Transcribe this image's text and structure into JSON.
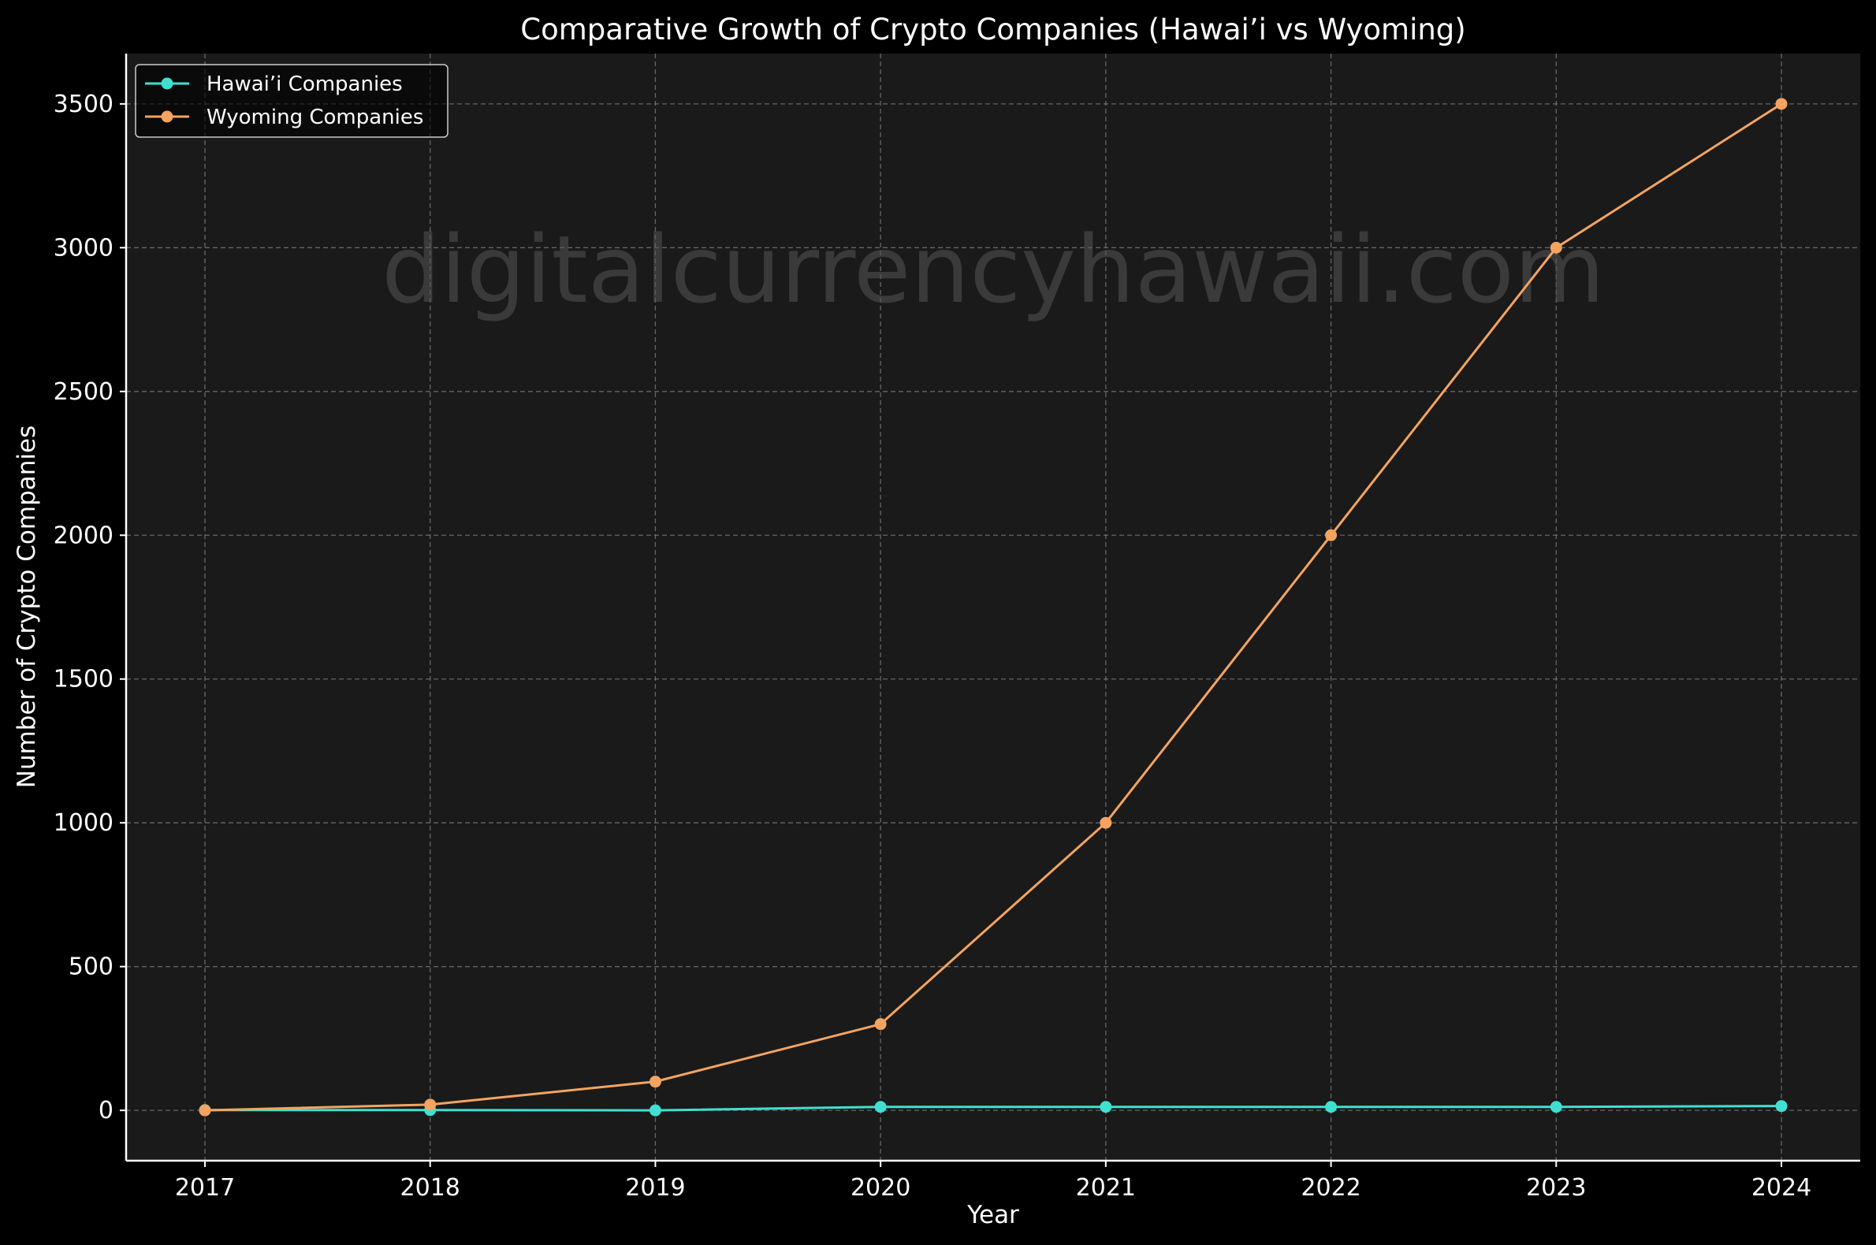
{
  "chart_data": {
    "type": "line",
    "title": "Comparative Growth of Crypto Companies (Hawai’i vs Wyoming)",
    "xlabel": "Year",
    "ylabel": "Number of Crypto Companies",
    "x": [
      2017,
      2018,
      2019,
      2020,
      2021,
      2022,
      2023,
      2024
    ],
    "x_tick_labels": [
      "2017",
      "2018",
      "2019",
      "2020",
      "2021",
      "2022",
      "2023",
      "2024"
    ],
    "xlim": [
      2016.65,
      2024.35
    ],
    "ylim": [
      -175,
      3675
    ],
    "y_ticks": [
      0,
      500,
      1000,
      1500,
      2000,
      2500,
      3000,
      3500
    ],
    "y_tick_labels": [
      "0",
      "500",
      "1000",
      "1500",
      "2000",
      "2500",
      "3000",
      "3500"
    ],
    "grid": true,
    "legend_position": "upper-left",
    "series": [
      {
        "name": "Hawai’i Companies",
        "color": "#40e0d0",
        "marker": "circle",
        "values": [
          1,
          1,
          0,
          12,
          12,
          12,
          12,
          15
        ]
      },
      {
        "name": "Wyoming Companies",
        "color": "#f4a460",
        "marker": "circle",
        "values": [
          0,
          20,
          100,
          300,
          1000,
          2000,
          3000,
          3500
        ]
      }
    ],
    "watermark": "digitalcurrencyhawaii.com"
  },
  "colors": {
    "figure_background": "#000000",
    "plot_background": "#1a1a1a",
    "grid": "#808080",
    "axis": "#ffffff",
    "text": "#ffffff",
    "watermark": "#555555"
  }
}
